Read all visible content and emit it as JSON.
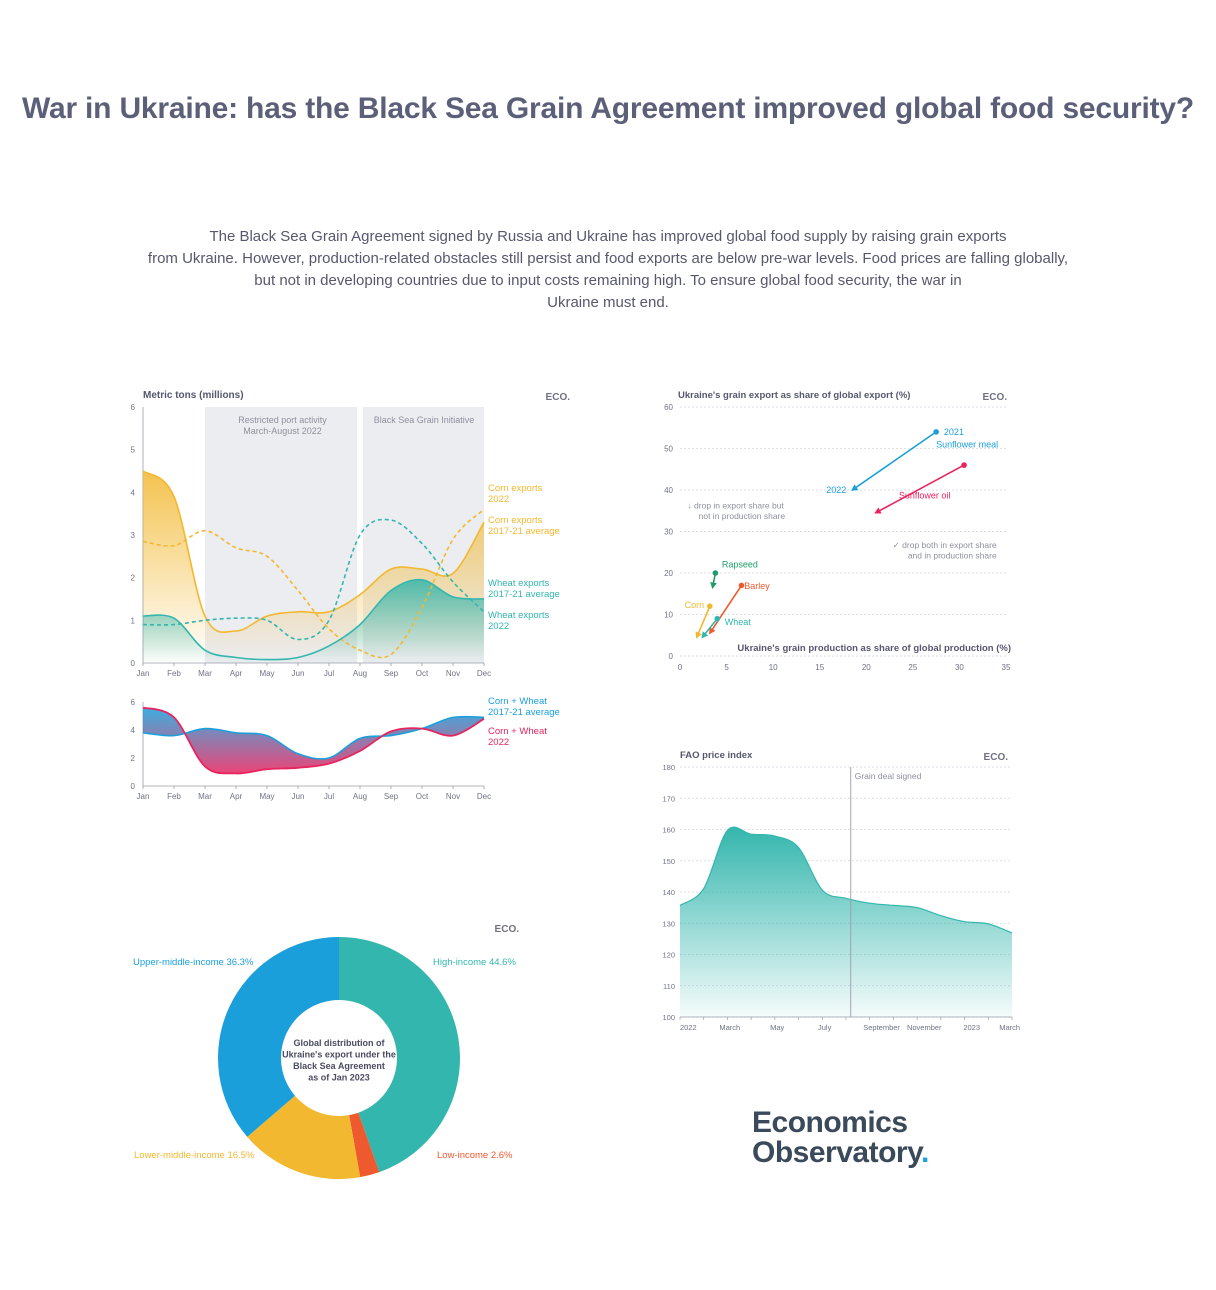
{
  "header": {
    "title": "War in Ukraine: has the Black Sea Grain Agreement improved global food security?",
    "intro_lines": [
      "The Black Sea Grain Agreement signed by Russia and Ukraine has improved global food supply by raising grain exports",
      "from Ukraine. However, production-related obstacles still persist and food exports are below pre-war levels. Food prices are falling globally,",
      "but not in developing countries due to input costs remaining high. To ensure global food security, the war in",
      "Ukraine must end."
    ]
  },
  "brand": {
    "chart_mark": "ECO.",
    "logo_line1": "Economics",
    "logo_line2": "Observatory",
    "logo_dot": "."
  },
  "colors": {
    "corn": "#f2b830",
    "wheat": "#33b6ad",
    "pink": "#e8245e",
    "blue": "#1a9fdb",
    "orange": "#ee5a2d",
    "green": "#1e9e6a",
    "shade": "#ecedf1"
  },
  "chart_data": [
    {
      "id": "exports",
      "type": "line",
      "ylabel": "Metric tons (millions)",
      "categories": [
        "Jan",
        "Feb",
        "Mar",
        "Apr",
        "May",
        "Jun",
        "Jul",
        "Aug",
        "Sep",
        "Oct",
        "Nov",
        "Dec"
      ],
      "ylim": [
        0,
        6
      ],
      "yticks": [
        "0",
        "1",
        "2",
        "3",
        "4",
        "5",
        "6"
      ],
      "annotations": [
        "Restricted port activity",
        "March-August 2022",
        "Black Sea Grain Initiative"
      ],
      "series": [
        {
          "name_lines": [
            "Corn exports",
            "2022"
          ],
          "style": "solid",
          "color": "corn",
          "values": [
            4.5,
            3.9,
            1.1,
            0.75,
            1.1,
            1.2,
            1.2,
            1.6,
            2.2,
            2.2,
            2.1,
            3.3
          ]
        },
        {
          "name_lines": [
            "Corn exports",
            "2017-21 average"
          ],
          "style": "dashed",
          "color": "corn",
          "values": [
            2.85,
            2.75,
            3.1,
            2.7,
            2.5,
            1.7,
            0.8,
            0.3,
            0.2,
            1.3,
            2.9,
            3.6
          ]
        },
        {
          "name_lines": [
            "Wheat exports",
            "2017-21 average"
          ],
          "style": "dashed",
          "color": "wheat",
          "values": [
            0.9,
            0.9,
            1.0,
            1.05,
            1.0,
            0.55,
            1.0,
            3.0,
            3.35,
            2.8,
            1.9,
            1.2
          ]
        },
        {
          "name_lines": [
            "Wheat exports",
            "2022"
          ],
          "style": "solid",
          "color": "wheat",
          "values": [
            1.1,
            1.05,
            0.3,
            0.13,
            0.08,
            0.13,
            0.4,
            0.9,
            1.7,
            1.95,
            1.55,
            1.5
          ]
        }
      ]
    },
    {
      "id": "combined",
      "type": "area",
      "categories": [
        "Jan",
        "Feb",
        "Mar",
        "Apr",
        "May",
        "Jun",
        "Jul",
        "Aug",
        "Sep",
        "Oct",
        "Nov",
        "Dec"
      ],
      "ylim": [
        0,
        6
      ],
      "yticks": [
        "0",
        "2",
        "4",
        "6"
      ],
      "series": [
        {
          "name_lines": [
            "Corn + Wheat",
            "2017-21 average"
          ],
          "color": "blue",
          "values": [
            3.8,
            3.6,
            4.1,
            3.8,
            3.6,
            2.3,
            2.0,
            3.4,
            3.6,
            4.1,
            4.9,
            4.9
          ]
        },
        {
          "name_lines": [
            "Corn + Wheat",
            "2022"
          ],
          "color": "pink",
          "values": [
            5.6,
            4.9,
            1.4,
            0.9,
            1.2,
            1.3,
            1.6,
            2.5,
            3.9,
            4.1,
            3.6,
            4.8
          ]
        }
      ]
    },
    {
      "id": "share",
      "type": "scatter",
      "title": "Ukraine's grain export as share of global export (%)",
      "xlabel": "Ukraine's grain production as share of global production (%)",
      "xlim": [
        0,
        35
      ],
      "ylim": [
        0,
        60
      ],
      "xticks": [
        "0",
        "5",
        "10",
        "15",
        "20",
        "25",
        "30",
        "35"
      ],
      "yticks": [
        "0",
        "10",
        "20",
        "30",
        "40",
        "50",
        "60"
      ],
      "year_labels": [
        "2021",
        "2022"
      ],
      "notes": [
        [
          "↓ drop in export share but",
          "not in production share"
        ],
        [
          "✓ drop both in export share",
          "and in production share"
        ]
      ],
      "series": [
        {
          "name": "Sunflower meal",
          "color": "blue",
          "from": [
            27.5,
            54
          ],
          "to": [
            18.5,
            40
          ]
        },
        {
          "name": "Sunflower oil",
          "color": "pink",
          "from": [
            30.5,
            46
          ],
          "to": [
            21,
            34.5
          ]
        },
        {
          "name": "Rapseed",
          "color": "green",
          "from": [
            3.8,
            20
          ],
          "to": [
            3.5,
            16.5
          ]
        },
        {
          "name": "Barley",
          "color": "orange",
          "from": [
            6.6,
            17
          ],
          "to": [
            3.2,
            5.5
          ]
        },
        {
          "name": "Corn",
          "color": "corn",
          "from": [
            3.2,
            12
          ],
          "to": [
            1.8,
            4.5
          ]
        },
        {
          "name": "Wheat",
          "color": "wheat",
          "from": [
            4.0,
            9
          ],
          "to": [
            2.4,
            4.5
          ]
        }
      ]
    },
    {
      "id": "fao",
      "type": "area",
      "ylabel": "FAO price index",
      "ylim": [
        100,
        180
      ],
      "yticks": [
        "100",
        "110",
        "120",
        "130",
        "140",
        "150",
        "160",
        "170",
        "180"
      ],
      "xticks": [
        "2022",
        "March",
        "May",
        "July",
        "September",
        "November",
        "2023",
        "March"
      ],
      "annotation": "Grain deal signed",
      "x": [
        0,
        1,
        2,
        3,
        4,
        5,
        6,
        7,
        8,
        9,
        10,
        11,
        12,
        13,
        14
      ],
      "values": [
        135.7,
        141.1,
        159.7,
        158.5,
        157.9,
        154.2,
        140.6,
        138.0,
        136.4,
        135.7,
        135.0,
        132.4,
        130.5,
        129.8,
        126.9
      ]
    },
    {
      "id": "distribution",
      "type": "pie",
      "center_lines": [
        "Global distribution of",
        "Ukraine's export under the",
        "Black Sea Agreement",
        "as of Jan 2023"
      ],
      "slices": [
        {
          "label": "High-income 44.6%",
          "value": 44.6,
          "color": "wheat"
        },
        {
          "label": "Low-income 2.6%",
          "value": 2.6,
          "color": "orange"
        },
        {
          "label": "Lower-middle-income 16.5%",
          "value": 16.5,
          "color": "corn"
        },
        {
          "label": "Upper-middle-income 36.3%",
          "value": 36.3,
          "color": "blue"
        }
      ]
    }
  ]
}
